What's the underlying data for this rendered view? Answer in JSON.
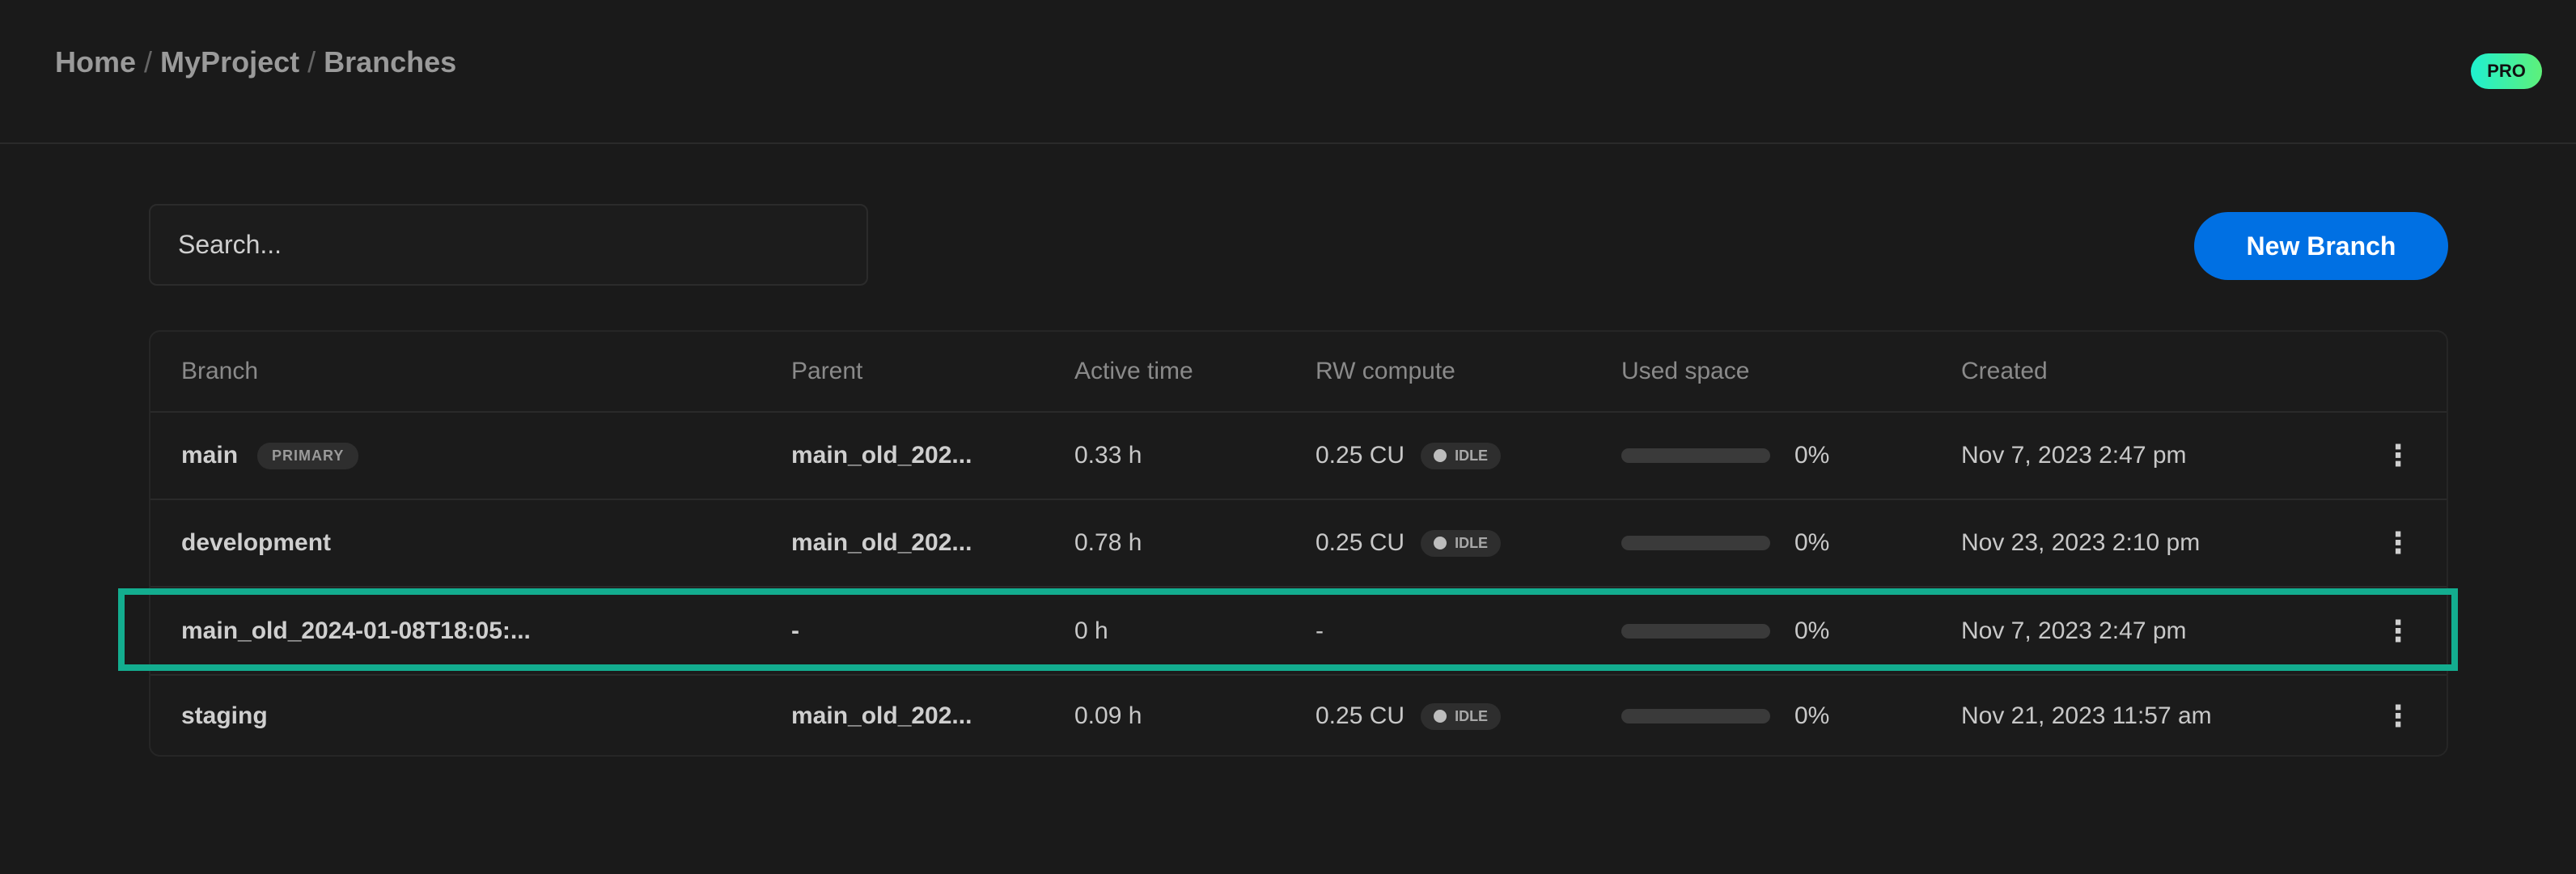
{
  "breadcrumb": {
    "items": [
      "Home",
      "MyProject",
      "Branches"
    ],
    "separator": "/"
  },
  "badge": {
    "label": "PRO"
  },
  "search": {
    "placeholder": "Search...",
    "value": ""
  },
  "toolbar": {
    "new_branch_label": "New Branch"
  },
  "table": {
    "columns": [
      "Branch",
      "Parent",
      "Active time",
      "RW compute",
      "Used space",
      "Created"
    ],
    "rows": [
      {
        "branch": "main",
        "tag": "PRIMARY",
        "parent": "main_old_202...",
        "active": "0.33 h",
        "compute": "0.25 CU",
        "status": "IDLE",
        "used_pct": 0,
        "used_label": "0%",
        "created": "Nov 7, 2023 2:47 pm",
        "more": "⋮"
      },
      {
        "branch": "development",
        "tag": "",
        "parent": "main_old_202...",
        "active": "0.78 h",
        "compute": "0.25 CU",
        "status": "IDLE",
        "used_pct": 0,
        "used_label": "0%",
        "created": "Nov 23, 2023 2:10 pm",
        "more": "⋮"
      },
      {
        "branch": "main_old_2024-01-08T18:05:...",
        "tag": "",
        "parent": "-",
        "active": "0 h",
        "compute": "-",
        "status": "",
        "used_pct": 0,
        "used_label": "0%",
        "created": "Nov 7, 2023 2:47 pm",
        "more": "⋮",
        "highlighted": true
      },
      {
        "branch": "staging",
        "tag": "",
        "parent": "main_old_202...",
        "active": "0.09 h",
        "compute": "0.25 CU",
        "status": "IDLE",
        "used_pct": 0,
        "used_label": "0%",
        "created": "Nov 21, 2023 11:57 am",
        "more": "⋮"
      }
    ]
  },
  "colors": {
    "accent": "#0070e3",
    "highlight": "#13ad8f",
    "background": "#1a1a1a"
  }
}
